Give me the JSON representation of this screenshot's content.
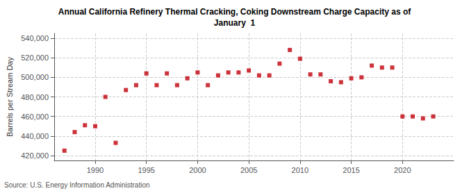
{
  "chart_data": {
    "type": "scatter",
    "title": "Annual California Refinery Thermal Cracking, Coking Downstream Charge Capacity as of\nJanuary  1",
    "ylabel": "Barrels per Stream Day",
    "annotations": [
      "Source: U.S. Energy Information Administration"
    ],
    "x": [
      1987,
      1988,
      1989,
      1990,
      1991,
      1992,
      1993,
      1994,
      1995,
      1996,
      1997,
      1998,
      1999,
      2000,
      2001,
      2002,
      2003,
      2004,
      2005,
      2006,
      2007,
      2008,
      2009,
      2010,
      2011,
      2012,
      2013,
      2014,
      2015,
      2016,
      2017,
      2018,
      2019,
      2020,
      2021,
      2022,
      2023
    ],
    "values": [
      425000,
      444000,
      451000,
      450000,
      480000,
      433000,
      487000,
      492000,
      504000,
      492000,
      504000,
      492000,
      499000,
      505000,
      492000,
      502000,
      505000,
      505000,
      507000,
      502000,
      502000,
      514000,
      528000,
      519000,
      503000,
      503000,
      496000,
      495000,
      499000,
      500000,
      512000,
      510000,
      510000,
      460000,
      460000,
      458000,
      460000
    ],
    "color": "#c0000a",
    "marker": "square",
    "xlim": [
      1986.0,
      2025.0
    ],
    "xticks": [
      1990,
      1995,
      2000,
      2005,
      2010,
      2015,
      2020
    ],
    "ylim": [
      415000,
      545000
    ],
    "yticks": [
      {
        "value": 420000,
        "label": "420,000"
      },
      {
        "value": 440000,
        "label": "440,000"
      },
      {
        "value": 460000,
        "label": "460,000"
      },
      {
        "value": 480000,
        "label": "480,000"
      },
      {
        "value": 500000,
        "label": "500,000"
      },
      {
        "value": 520000,
        "label": "520,000"
      },
      {
        "value": 540000,
        "label": "540,000"
      }
    ],
    "grid": true
  }
}
